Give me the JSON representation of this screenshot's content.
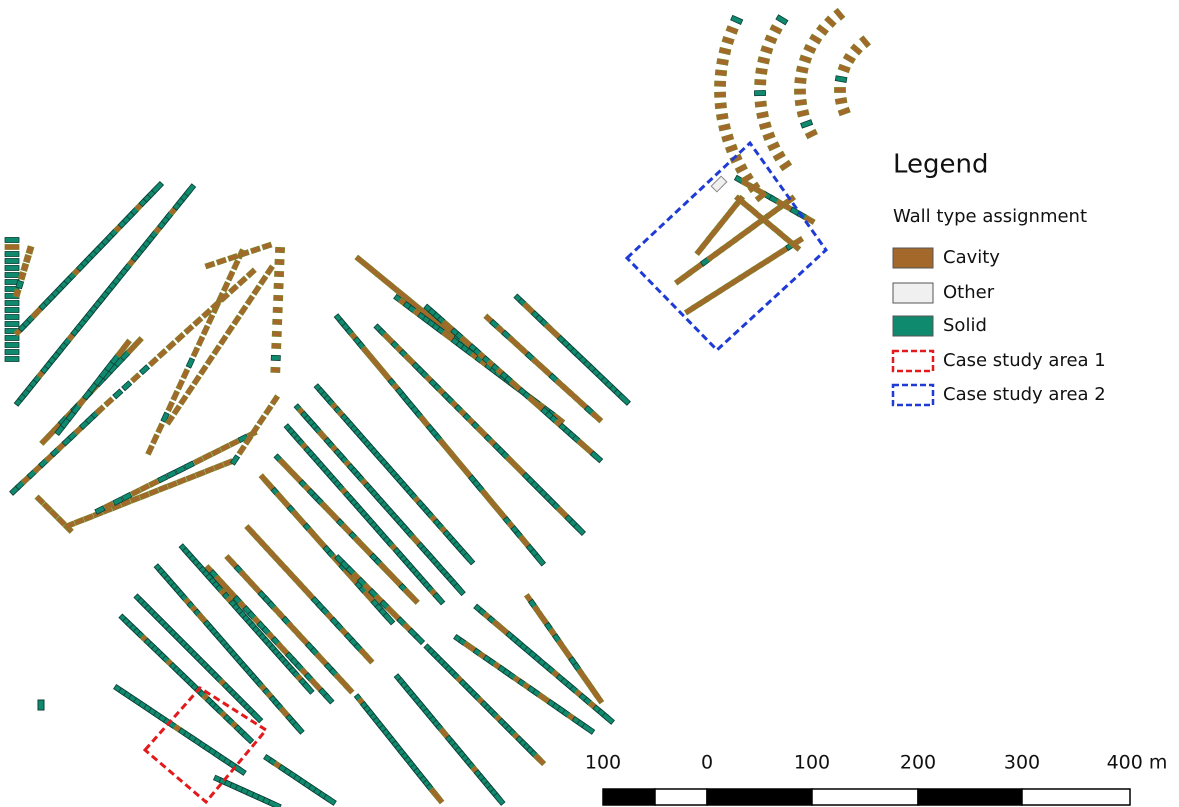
{
  "legend": {
    "title": "Legend",
    "subtitle": "Wall type assignment",
    "items": [
      {
        "label": "Cavity",
        "color": "#a4692a"
      },
      {
        "label": "Other",
        "color": "#f0f0f0"
      },
      {
        "label": "Solid",
        "color": "#0f8a6e"
      },
      {
        "label": "Case study area 1",
        "color": "#e31a1c"
      },
      {
        "label": "Case study area 2",
        "color": "#1f3bd6"
      }
    ]
  },
  "scale_bar": {
    "labels": [
      "100",
      "0",
      "100",
      "200",
      "300",
      "400 m"
    ]
  }
}
